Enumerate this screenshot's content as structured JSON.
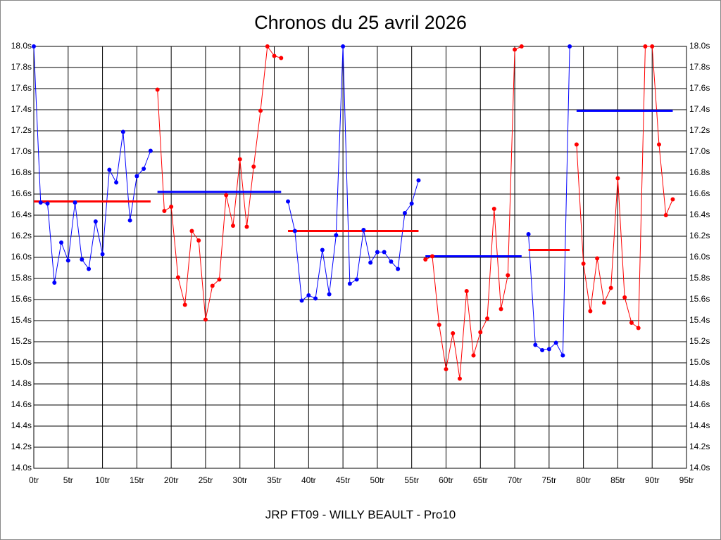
{
  "chart_data": {
    "type": "line",
    "title": "Chronos du 25 avril 2026",
    "xlabel": "JRP FT09 - WILLY BEAULT - Pro10",
    "xlim": [
      0,
      95
    ],
    "xticks": [
      {
        "value": 0,
        "label": "0tr"
      },
      {
        "value": 5,
        "label": "5tr"
      },
      {
        "value": 10,
        "label": "10tr"
      },
      {
        "value": 15,
        "label": "15tr"
      },
      {
        "value": 20,
        "label": "20tr"
      },
      {
        "value": 25,
        "label": "25tr"
      },
      {
        "value": 30,
        "label": "30tr"
      },
      {
        "value": 35,
        "label": "35tr"
      },
      {
        "value": 40,
        "label": "40tr"
      },
      {
        "value": 45,
        "label": "45tr"
      },
      {
        "value": 50,
        "label": "50tr"
      },
      {
        "value": 55,
        "label": "55tr"
      },
      {
        "value": 60,
        "label": "60tr"
      },
      {
        "value": 65,
        "label": "65tr"
      },
      {
        "value": 70,
        "label": "70tr"
      },
      {
        "value": 75,
        "label": "75tr"
      },
      {
        "value": 80,
        "label": "80tr"
      },
      {
        "value": 85,
        "label": "85tr"
      },
      {
        "value": 90,
        "label": "90tr"
      },
      {
        "value": 95,
        "label": "95tr"
      }
    ],
    "ylim": [
      14.0,
      18.0
    ],
    "yticks": [
      {
        "value": 14.0,
        "label": "14.0s"
      },
      {
        "value": 14.2,
        "label": "14.2s"
      },
      {
        "value": 14.4,
        "label": "14.4s"
      },
      {
        "value": 14.6,
        "label": "14.6s"
      },
      {
        "value": 14.8,
        "label": "14.8s"
      },
      {
        "value": 15.0,
        "label": "15.0s"
      },
      {
        "value": 15.2,
        "label": "15.2s"
      },
      {
        "value": 15.4,
        "label": "15.4s"
      },
      {
        "value": 15.6,
        "label": "15.6s"
      },
      {
        "value": 15.8,
        "label": "15.8s"
      },
      {
        "value": 16.0,
        "label": "16.0s"
      },
      {
        "value": 16.2,
        "label": "16.2s"
      },
      {
        "value": 16.4,
        "label": "16.4s"
      },
      {
        "value": 16.6,
        "label": "16.6s"
      },
      {
        "value": 16.8,
        "label": "16.8s"
      },
      {
        "value": 17.0,
        "label": "17.0s"
      },
      {
        "value": 17.2,
        "label": "17.2s"
      },
      {
        "value": 17.4,
        "label": "17.4s"
      },
      {
        "value": 17.6,
        "label": "17.6s"
      },
      {
        "value": 17.8,
        "label": "17.8s"
      },
      {
        "value": 18.0,
        "label": "18.0s"
      }
    ],
    "grid": true,
    "series": [
      {
        "color": "#0000ff",
        "mean": 16.53,
        "mean_color": "#ff0000",
        "x": [
          0,
          1,
          2,
          3,
          4,
          5,
          6,
          7,
          8,
          9,
          10,
          11,
          12,
          13,
          14,
          15,
          16,
          17
        ],
        "values": [
          18.0,
          16.52,
          16.51,
          15.76,
          16.14,
          15.97,
          16.52,
          15.98,
          15.89,
          16.34,
          16.03,
          16.83,
          16.71,
          17.19,
          16.35,
          16.77,
          16.84,
          17.01
        ]
      },
      {
        "color": "#ff0000",
        "mean": 16.62,
        "mean_color": "#0000ff",
        "x": [
          18,
          19,
          20,
          21,
          22,
          23,
          24,
          25,
          26,
          27,
          28,
          29,
          30,
          31,
          32,
          33,
          34,
          35,
          36
        ],
        "values": [
          17.59,
          16.44,
          16.48,
          15.81,
          15.55,
          16.25,
          16.16,
          15.41,
          15.73,
          15.79,
          16.59,
          16.3,
          16.93,
          16.29,
          16.86,
          17.39,
          18.0,
          17.91,
          17.89
        ]
      },
      {
        "color": "#0000ff",
        "mean": 16.25,
        "mean_color": "#ff0000",
        "x": [
          37,
          38,
          39,
          40,
          41,
          42,
          43,
          44,
          45,
          46,
          47,
          48,
          49,
          50,
          51,
          52,
          53,
          54,
          55,
          56
        ],
        "values": [
          16.53,
          16.25,
          15.59,
          15.64,
          15.61,
          16.07,
          15.65,
          16.21,
          18.0,
          15.75,
          15.79,
          16.26,
          15.95,
          16.05,
          16.05,
          15.96,
          15.89,
          16.42,
          16.51,
          16.73
        ]
      },
      {
        "color": "#ff0000",
        "mean": 16.01,
        "mean_color": "#0000ff",
        "x": [
          57,
          58,
          59,
          60,
          61,
          62,
          63,
          64,
          65,
          66,
          67,
          68,
          69,
          70,
          71
        ],
        "values": [
          15.98,
          16.01,
          15.36,
          14.94,
          15.28,
          14.85,
          15.68,
          15.07,
          15.29,
          15.42,
          16.46,
          15.51,
          15.83,
          17.97,
          18.0
        ]
      },
      {
        "color": "#0000ff",
        "mean": 16.07,
        "mean_color": "#ff0000",
        "x": [
          72,
          73,
          74,
          75,
          76,
          77,
          78
        ],
        "values": [
          16.22,
          15.17,
          15.12,
          15.13,
          15.19,
          15.07,
          18.0
        ]
      },
      {
        "color": "#ff0000",
        "mean": 17.39,
        "mean_color": "#0000ff",
        "x": [
          79,
          80,
          81,
          82,
          83,
          84,
          85,
          86,
          87,
          88,
          89,
          90,
          91,
          92,
          93
        ],
        "values": [
          17.07,
          15.94,
          15.49,
          15.99,
          15.57,
          15.71,
          16.75,
          15.62,
          15.38,
          15.33,
          18.0,
          18.0,
          17.07,
          16.4,
          16.55
        ]
      }
    ]
  }
}
